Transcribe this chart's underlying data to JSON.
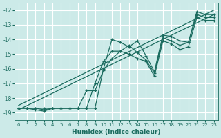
{
  "xlabel": "Humidex (Indice chaleur)",
  "bg_color": "#cceae8",
  "grid_color": "#ffffff",
  "line_color": "#1a6b5e",
  "xlim": [
    -0.5,
    23.5
  ],
  "ylim": [
    -19.5,
    -11.5
  ],
  "xticks": [
    0,
    1,
    2,
    3,
    4,
    5,
    6,
    7,
    8,
    9,
    10,
    11,
    12,
    13,
    14,
    15,
    16,
    17,
    18,
    19,
    20,
    21,
    22,
    23
  ],
  "yticks": [
    -19,
    -18,
    -17,
    -16,
    -15,
    -14,
    -13,
    -12
  ],
  "line1_x": [
    0,
    1,
    2,
    3,
    4,
    5,
    6,
    7,
    8,
    9,
    10,
    11,
    12,
    13,
    14,
    15,
    16,
    17,
    18,
    19,
    20,
    21,
    22,
    23
  ],
  "line1_y": [
    -18.7,
    -18.7,
    -18.7,
    -18.7,
    -18.7,
    -18.7,
    -18.7,
    -18.7,
    -18.7,
    -18.7,
    -16.0,
    -14.0,
    -14.2,
    -14.5,
    -14.1,
    -15.1,
    -16.2,
    -13.7,
    -13.8,
    -14.1,
    -14.2,
    -12.1,
    -12.3,
    -12.3
  ],
  "line2_x": [
    0,
    1,
    2,
    3,
    4,
    5,
    6,
    7,
    8,
    9,
    10,
    11,
    12,
    13,
    14,
    15,
    16,
    17,
    18,
    19,
    20,
    21,
    22,
    23
  ],
  "line2_y": [
    -18.7,
    -18.7,
    -18.7,
    -18.8,
    -18.7,
    -18.7,
    -18.7,
    -18.7,
    -17.5,
    -17.5,
    -16.1,
    -15.3,
    -14.8,
    -14.4,
    -14.9,
    -15.4,
    -16.3,
    -13.9,
    -14.1,
    -14.4,
    -14.2,
    -12.3,
    -12.5,
    -12.5
  ],
  "line3_x": [
    0,
    1,
    2,
    3,
    4,
    5,
    6,
    7,
    8,
    9,
    10,
    11,
    12,
    13,
    14,
    15,
    16,
    17,
    18,
    19,
    20,
    21,
    22,
    23
  ],
  "line3_y": [
    -18.7,
    -18.7,
    -18.8,
    -18.9,
    -18.7,
    -18.7,
    -18.7,
    -18.7,
    -18.7,
    -17.0,
    -15.5,
    -14.8,
    -14.8,
    -15.0,
    -15.3,
    -15.5,
    -16.5,
    -14.1,
    -14.3,
    -14.7,
    -14.5,
    -12.5,
    -12.7,
    -12.7
  ]
}
